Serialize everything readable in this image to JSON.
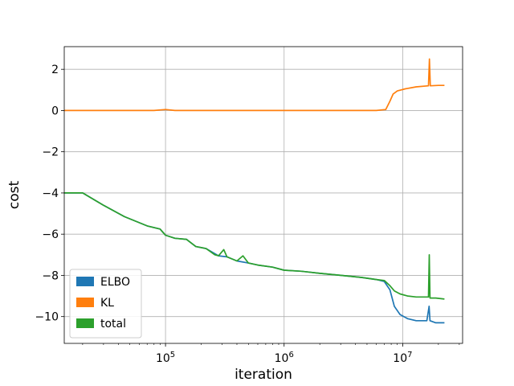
{
  "chart_data": {
    "type": "line",
    "title": "",
    "xlabel": "iteration",
    "ylabel": "cost",
    "x_scale": "log",
    "xlim": [
      14000,
      32000000
    ],
    "ylim": [
      -11.3,
      3.1
    ],
    "grid": true,
    "legend_position": "lower-left",
    "x_ticks": [
      {
        "value": 100000,
        "base": "10",
        "exp": "5"
      },
      {
        "value": 1000000,
        "base": "10",
        "exp": "6"
      },
      {
        "value": 10000000,
        "base": "10",
        "exp": "7"
      }
    ],
    "y_ticks": [
      {
        "value": 2,
        "label": "2"
      },
      {
        "value": 0,
        "label": "0"
      },
      {
        "value": -2,
        "label": "−2"
      },
      {
        "value": -4,
        "label": "−4"
      },
      {
        "value": -6,
        "label": "−6"
      },
      {
        "value": -8,
        "label": "−8"
      },
      {
        "value": -10,
        "label": "−10"
      }
    ],
    "series": [
      {
        "name": "ELBO",
        "color": "#1f77b4",
        "points": [
          [
            14000,
            -4
          ],
          [
            20000,
            -4
          ],
          [
            30000,
            -4.6
          ],
          [
            45000,
            -5.15
          ],
          [
            70000,
            -5.6
          ],
          [
            90000,
            -5.75
          ],
          [
            100000,
            -6.05
          ],
          [
            120000,
            -6.2
          ],
          [
            150000,
            -6.25
          ],
          [
            180000,
            -6.6
          ],
          [
            220000,
            -6.7
          ],
          [
            280000,
            -7.05
          ],
          [
            330000,
            -7.1
          ],
          [
            400000,
            -7.3
          ],
          [
            500000,
            -7.4
          ],
          [
            600000,
            -7.5
          ],
          [
            800000,
            -7.6
          ],
          [
            1000000,
            -7.75
          ],
          [
            1400000,
            -7.8
          ],
          [
            2000000,
            -7.9
          ],
          [
            3000000,
            -8.0
          ],
          [
            4500000,
            -8.1
          ],
          [
            6000000,
            -8.2
          ],
          [
            7000000,
            -8.3
          ],
          [
            7800000,
            -8.7
          ],
          [
            8500000,
            -9.5
          ],
          [
            9500000,
            -9.9
          ],
          [
            11000000,
            -10.1
          ],
          [
            13000000,
            -10.2
          ],
          [
            16000000,
            -10.2
          ],
          [
            16700000,
            -9.5
          ],
          [
            17000000,
            -10.2
          ],
          [
            19000000,
            -10.3
          ],
          [
            22500000,
            -10.3
          ]
        ]
      },
      {
        "name": "KL",
        "color": "#ff7f0e",
        "points": [
          [
            14000,
            0
          ],
          [
            80000,
            0
          ],
          [
            100000,
            0.05
          ],
          [
            120000,
            0
          ],
          [
            1000000,
            0
          ],
          [
            3000000,
            0
          ],
          [
            6000000,
            0
          ],
          [
            7200000,
            0.05
          ],
          [
            7800000,
            0.45
          ],
          [
            8300000,
            0.8
          ],
          [
            9000000,
            0.95
          ],
          [
            10500000,
            1.05
          ],
          [
            13000000,
            1.15
          ],
          [
            16500000,
            1.2
          ],
          [
            16800000,
            2.5
          ],
          [
            17100000,
            1.2
          ],
          [
            20000000,
            1.22
          ],
          [
            22500000,
            1.22
          ]
        ]
      },
      {
        "name": "total",
        "color": "#2ca02c",
        "points": [
          [
            14000,
            -4
          ],
          [
            20000,
            -4
          ],
          [
            30000,
            -4.6
          ],
          [
            45000,
            -5.15
          ],
          [
            70000,
            -5.6
          ],
          [
            90000,
            -5.75
          ],
          [
            100000,
            -6.05
          ],
          [
            120000,
            -6.2
          ],
          [
            150000,
            -6.25
          ],
          [
            180000,
            -6.6
          ],
          [
            220000,
            -6.7
          ],
          [
            260000,
            -7.0
          ],
          [
            280000,
            -7.05
          ],
          [
            310000,
            -6.75
          ],
          [
            330000,
            -7.1
          ],
          [
            400000,
            -7.3
          ],
          [
            450000,
            -7.05
          ],
          [
            500000,
            -7.4
          ],
          [
            600000,
            -7.5
          ],
          [
            800000,
            -7.6
          ],
          [
            1000000,
            -7.75
          ],
          [
            1400000,
            -7.8
          ],
          [
            2000000,
            -7.9
          ],
          [
            3000000,
            -8.0
          ],
          [
            4500000,
            -8.1
          ],
          [
            6000000,
            -8.2
          ],
          [
            7000000,
            -8.25
          ],
          [
            7800000,
            -8.5
          ],
          [
            8500000,
            -8.75
          ],
          [
            9500000,
            -8.9
          ],
          [
            11000000,
            -9.0
          ],
          [
            13000000,
            -9.05
          ],
          [
            16500000,
            -9.05
          ],
          [
            16750000,
            -7.0
          ],
          [
            17000000,
            -9.1
          ],
          [
            19000000,
            -9.1
          ],
          [
            22500000,
            -9.15
          ]
        ]
      }
    ]
  }
}
